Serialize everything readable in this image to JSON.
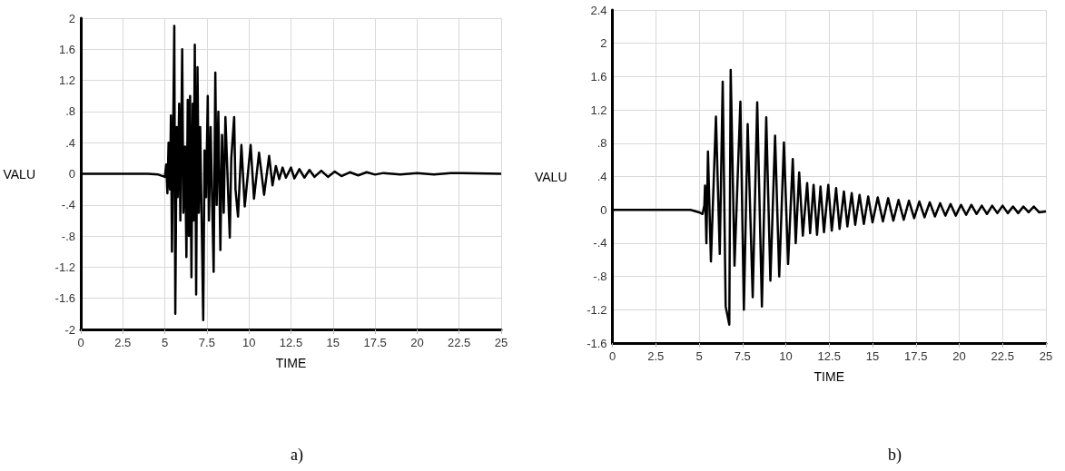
{
  "chart_data": [
    {
      "type": "line",
      "xlabel": "TIME",
      "ylabel": "VALU",
      "annotations": [
        "a)"
      ],
      "grid": true,
      "marker": "none",
      "xlim": [
        0,
        25
      ],
      "ylim": [
        -2,
        2
      ],
      "xticks": [
        0,
        2.5,
        5,
        7.5,
        10,
        12.5,
        15,
        17.5,
        20,
        22.5,
        25
      ],
      "yticks": [
        -2,
        -1.6,
        -1.2,
        {
          "value": -0.8,
          "label": "-.8"
        },
        {
          "value": -0.4,
          "label": "-.4"
        },
        0,
        {
          "value": 0.4,
          "label": ".4"
        },
        {
          "value": 0.8,
          "label": ".8"
        },
        1.2,
        1.6,
        2
      ],
      "series": [
        {
          "color": "#000000",
          "x": [
            0,
            4,
            4.6,
            5.0,
            5.08,
            5.15,
            5.22,
            5.3,
            5.36,
            5.42,
            5.56,
            5.62,
            5.7,
            5.76,
            5.85,
            5.92,
            6.03,
            6.1,
            6.2,
            6.28,
            6.36,
            6.43,
            6.5,
            6.58,
            6.66,
            6.7,
            6.78,
            6.86,
            6.94,
            7.02,
            7.1,
            7.28,
            7.36,
            7.45,
            7.55,
            7.62,
            7.72,
            7.9,
            8.0,
            8.08,
            8.18,
            8.3,
            8.4,
            8.5,
            8.6,
            8.86,
            8.95,
            9.12,
            9.2,
            9.35,
            9.55,
            9.75,
            10.1,
            10.3,
            10.6,
            10.9,
            11.2,
            11.4,
            11.6,
            11.8,
            12.0,
            12.2,
            12.5,
            12.7,
            13.0,
            13.3,
            13.6,
            13.9,
            14.3,
            14.7,
            15.1,
            15.5,
            16,
            16.5,
            17,
            17.5,
            18,
            19,
            20,
            21,
            22,
            25
          ],
          "values": [
            0,
            0,
            -0.01,
            -0.04,
            0.12,
            -0.25,
            0.4,
            -0.2,
            0.75,
            -1.0,
            1.9,
            -1.8,
            0.6,
            -0.3,
            0.9,
            -0.6,
            1.6,
            -0.5,
            0.35,
            -1.07,
            0.95,
            -0.8,
            1.0,
            -1.33,
            0.9,
            -0.6,
            1.66,
            -1.55,
            1.37,
            -0.5,
            0.6,
            -1.88,
            0.3,
            -0.3,
            1.0,
            -0.6,
            0.6,
            -1.26,
            1.3,
            -0.4,
            0.8,
            -0.98,
            0.5,
            -0.5,
            0.73,
            -0.82,
            0.2,
            0.73,
            -0.2,
            -0.55,
            0.37,
            -0.42,
            0.37,
            -0.32,
            0.27,
            -0.27,
            0.23,
            -0.15,
            0.1,
            -0.07,
            0.08,
            -0.05,
            0.08,
            -0.06,
            0.06,
            -0.05,
            0.05,
            -0.04,
            0.04,
            -0.04,
            0.03,
            -0.03,
            0.02,
            -0.02,
            0.02,
            -0.01,
            0.01,
            -0.01,
            0.01,
            -0.01,
            0.01,
            0
          ]
        }
      ]
    },
    {
      "type": "line",
      "xlabel": "TIME",
      "ylabel": "VALU",
      "annotations": [
        "b)"
      ],
      "grid": true,
      "marker": "none",
      "xlim": [
        0,
        25
      ],
      "ylim": [
        -1.6,
        2.4
      ],
      "xticks": [
        0,
        2.5,
        5,
        7.5,
        10,
        12.5,
        15,
        17.5,
        20,
        22.5,
        25
      ],
      "yticks": [
        -1.6,
        -1.2,
        {
          "value": -0.8,
          "label": "-.8"
        },
        {
          "value": -0.4,
          "label": "-.4"
        },
        0,
        {
          "value": 0.4,
          "label": ".4"
        },
        {
          "value": 0.8,
          "label": ".8"
        },
        1.2,
        1.6,
        2,
        2.4
      ],
      "series": [
        {
          "color": "#000000",
          "x": [
            0,
            4.5,
            5.0,
            5.2,
            5.3,
            5.34,
            5.42,
            5.51,
            5.68,
            5.97,
            6.19,
            6.36,
            6.53,
            6.74,
            6.82,
            7.04,
            7.38,
            7.58,
            7.8,
            8.09,
            8.35,
            8.62,
            8.87,
            9.11,
            9.38,
            9.62,
            9.89,
            10.13,
            10.4,
            10.57,
            10.77,
            10.98,
            11.23,
            11.4,
            11.6,
            11.8,
            12.0,
            12.2,
            12.45,
            12.65,
            12.9,
            13.1,
            13.35,
            13.55,
            13.8,
            14.0,
            14.25,
            14.5,
            14.75,
            15.0,
            15.3,
            15.6,
            15.9,
            16.2,
            16.5,
            16.8,
            17.1,
            17.4,
            17.7,
            18.0,
            18.3,
            18.6,
            18.9,
            19.2,
            19.5,
            19.8,
            20.1,
            20.4,
            20.7,
            21.0,
            21.3,
            21.6,
            21.9,
            22.2,
            22.5,
            22.8,
            23.1,
            23.4,
            23.7,
            24.0,
            24.3,
            24.6,
            25
          ],
          "values": [
            0,
            0,
            -0.03,
            -0.05,
            0.05,
            0.29,
            -0.4,
            0.7,
            -0.62,
            1.12,
            -0.53,
            1.54,
            -1.16,
            -1.38,
            1.68,
            -0.67,
            1.3,
            -1.2,
            1.03,
            -1.05,
            1.29,
            -1.16,
            1.11,
            -0.85,
            0.89,
            -0.8,
            0.81,
            -0.65,
            0.61,
            -0.4,
            0.45,
            -0.31,
            0.32,
            -0.28,
            0.3,
            -0.3,
            0.28,
            -0.27,
            0.3,
            -0.25,
            0.26,
            -0.23,
            0.22,
            -0.2,
            0.2,
            -0.18,
            0.18,
            -0.17,
            0.16,
            -0.15,
            0.15,
            -0.14,
            0.14,
            -0.13,
            0.12,
            -0.12,
            0.11,
            -0.1,
            0.1,
            -0.09,
            0.09,
            -0.08,
            0.08,
            -0.07,
            0.07,
            -0.07,
            0.06,
            -0.06,
            0.06,
            -0.05,
            0.05,
            -0.05,
            0.05,
            -0.04,
            0.05,
            -0.04,
            0.04,
            -0.04,
            0.04,
            -0.03,
            0.04,
            -0.03,
            -0.02
          ]
        }
      ]
    }
  ]
}
